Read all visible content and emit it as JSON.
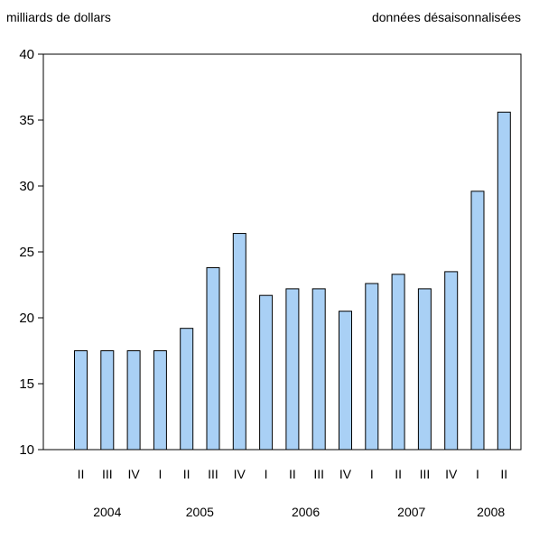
{
  "chart_data": {
    "type": "bar",
    "ylabel": "milliards de dollars",
    "subtitle": "données désaisonnalisées",
    "ylim": [
      10,
      40
    ],
    "yticks": [
      10,
      15,
      20,
      25,
      30,
      35,
      40
    ],
    "grid": false,
    "categories": [
      "II",
      "III",
      "IV",
      "I",
      "II",
      "III",
      "IV",
      "I",
      "II",
      "III",
      "IV",
      "I",
      "II",
      "III",
      "IV",
      "I",
      "II"
    ],
    "years": [
      {
        "label": "2004",
        "start": 0,
        "end": 2
      },
      {
        "label": "2005",
        "start": 3,
        "end": 6
      },
      {
        "label": "2006",
        "start": 7,
        "end": 10
      },
      {
        "label": "2007",
        "start": 11,
        "end": 14
      },
      {
        "label": "2008",
        "start": 15,
        "end": 16
      }
    ],
    "values": [
      17.5,
      17.5,
      17.5,
      17.5,
      19.2,
      23.8,
      26.4,
      21.7,
      22.2,
      22.2,
      20.5,
      22.6,
      23.3,
      22.2,
      23.5,
      29.6,
      35.6
    ],
    "bar_color": "#a9d0f5"
  }
}
